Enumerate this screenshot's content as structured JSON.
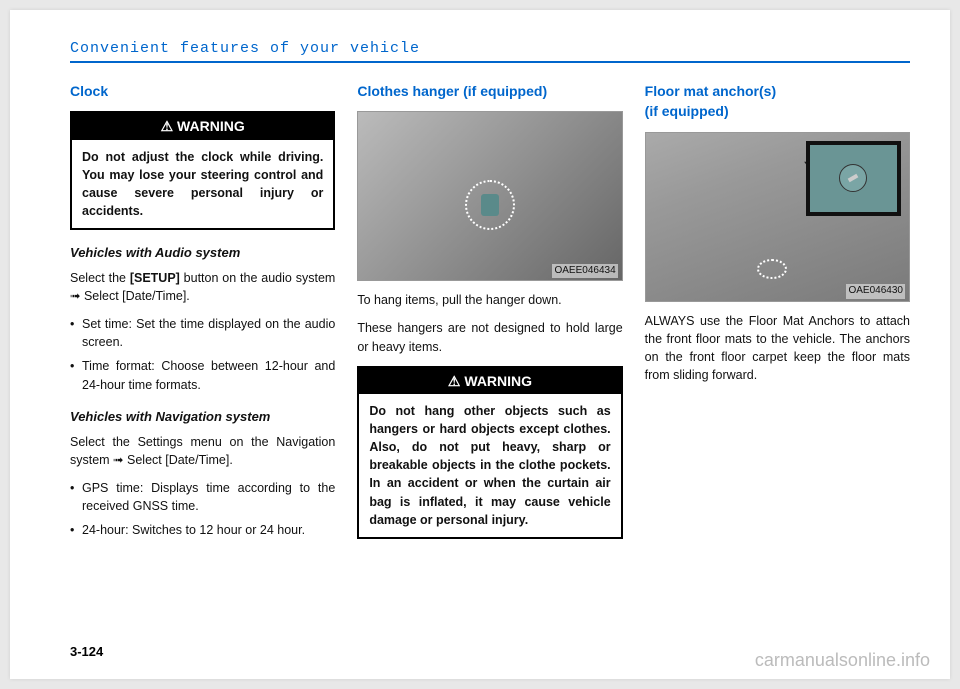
{
  "header": {
    "title": "Convenient features of your vehicle"
  },
  "col1": {
    "section_title": "Clock",
    "warning_label": "WARNING",
    "warning_body": "Do not adjust the clock while driving. You may lose your steering control and cause severe personal injury or accidents.",
    "sub1_title": "Vehicles with Audio system",
    "sub1_para": "Select the [SETUP] button on the audio system ➟ Select [Date/Time].",
    "sub1_setup_word": "[SETUP]",
    "sub1_bullets": [
      "Set time: Set the time displayed on the audio screen.",
      "Time format: Choose between 12-hour and 24-hour time formats."
    ],
    "sub2_title": "Vehicles with Navigation system",
    "sub2_para": "Select the Settings menu on the Navigation system ➟ Select [Date/Time].",
    "sub2_bullets": [
      "GPS time: Displays time according to the received GNSS time.",
      "24-hour: Switches to 12 hour or 24 hour."
    ]
  },
  "col2": {
    "section_title": "Clothes hanger (if equipped)",
    "fig_label": "OAEE046434",
    "para1": "To hang items, pull the hanger down.",
    "para2": "These hangers are not designed to hold large or heavy items.",
    "warning_label": "WARNING",
    "warning_body": "Do not hang other objects such as hangers or hard objects except clothes. Also, do not put heavy, sharp or breakable objects in the clothe pockets. In an accident or when the curtain air bag is inflated, it may cause vehicle damage or personal injury."
  },
  "col3": {
    "section_title_line1": "Floor mat anchor(s)",
    "section_title_line2": "(if equipped)",
    "fig_label": "OAE046430",
    "para": "ALWAYS use the Floor Mat Anchors to attach the front floor mats to the vehicle. The anchors on the front floor carpet keep the floor mats from sliding forward."
  },
  "page_num": "3-124",
  "watermark": "carmanualsonline.info"
}
